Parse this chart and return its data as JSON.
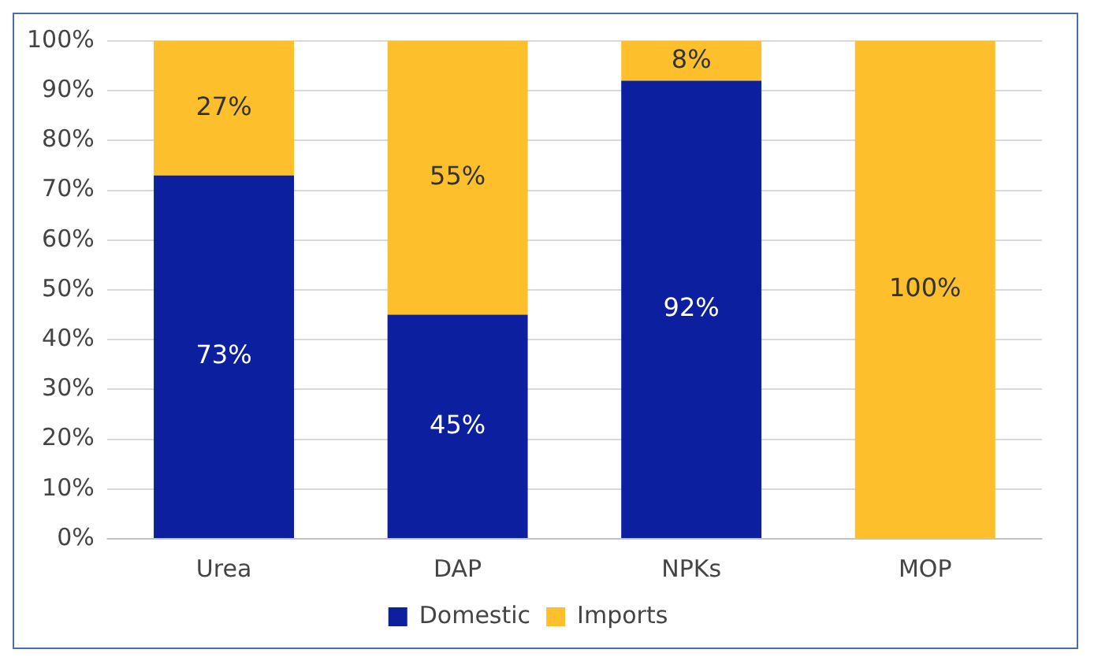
{
  "chart_data": {
    "type": "bar",
    "stacked": true,
    "categories": [
      "Urea",
      "DAP",
      "NPKs",
      "MOP"
    ],
    "series": [
      {
        "name": "Domestic",
        "color": "#0c1f9e",
        "values": [
          73,
          45,
          92,
          0
        ],
        "value_labels": [
          "73%",
          "45%",
          "92%",
          null
        ]
      },
      {
        "name": "Imports",
        "color": "#fdc02c",
        "values": [
          27,
          55,
          8,
          100
        ],
        "value_labels": [
          "27%",
          "55%",
          "8%",
          "100%"
        ]
      }
    ],
    "ylim": [
      0,
      100
    ],
    "yticks": [
      {
        "value": 0,
        "label": "0%"
      },
      {
        "value": 10,
        "label": "10%"
      },
      {
        "value": 20,
        "label": "20%"
      },
      {
        "value": 30,
        "label": "30%"
      },
      {
        "value": 40,
        "label": "40%"
      },
      {
        "value": 50,
        "label": "50%"
      },
      {
        "value": 60,
        "label": "60%"
      },
      {
        "value": 70,
        "label": "70%"
      },
      {
        "value": 80,
        "label": "80%"
      },
      {
        "value": 90,
        "label": "90%"
      },
      {
        "value": 100,
        "label": "100%"
      }
    ],
    "grid": "y",
    "legend": "bottom"
  }
}
